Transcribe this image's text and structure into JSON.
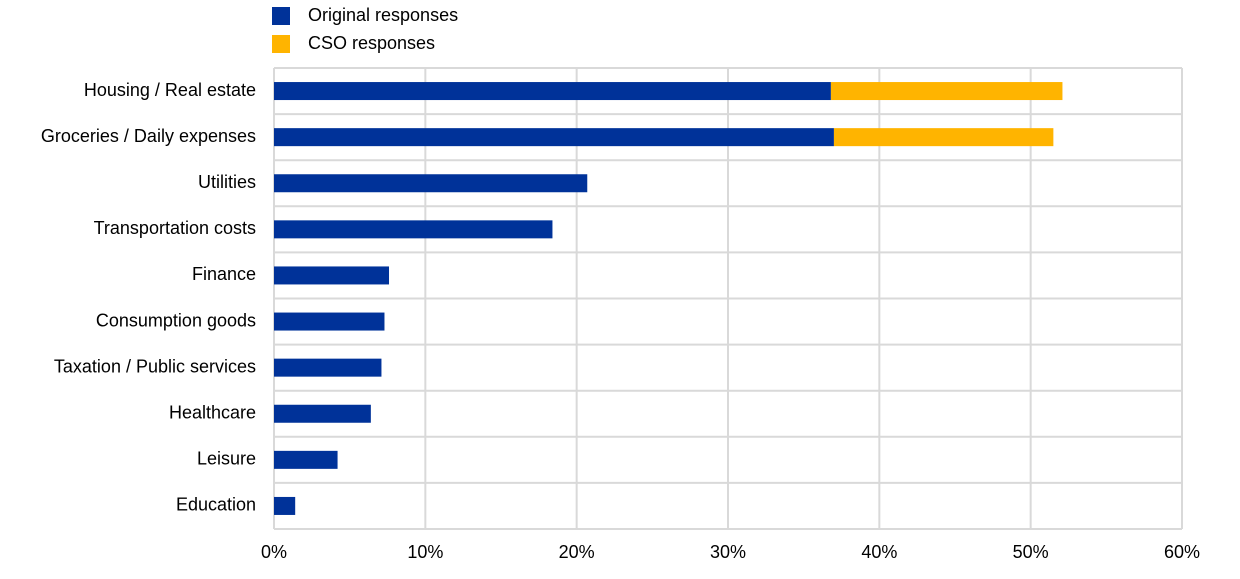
{
  "chart_data": {
    "type": "stacked-bar-horizontal",
    "categories": [
      "Housing / Real estate",
      "Groceries / Daily expenses",
      "Utilities",
      "Transportation costs",
      "Finance",
      "Consumption goods",
      "Taxation / Public services",
      "Healthcare",
      "Leisure",
      "Education"
    ],
    "series": [
      {
        "name": "Original responses",
        "color": "#003299",
        "values": [
          36.8,
          37.0,
          20.7,
          18.4,
          7.6,
          7.3,
          7.1,
          6.4,
          4.2,
          1.4
        ]
      },
      {
        "name": "CSO responses",
        "color": "#ffb400",
        "values": [
          15.3,
          14.5,
          null,
          null,
          null,
          null,
          null,
          null,
          null,
          null
        ]
      }
    ],
    "xlim": [
      0,
      60
    ],
    "xticks": [
      {
        "value": 0,
        "label": "0%"
      },
      {
        "value": 10,
        "label": "10%"
      },
      {
        "value": 20,
        "label": "20%"
      },
      {
        "value": 30,
        "label": "30%"
      },
      {
        "value": 40,
        "label": "40%"
      },
      {
        "value": 50,
        "label": "50%"
      },
      {
        "value": 60,
        "label": "60%"
      }
    ],
    "grid": true,
    "legend": "top-left"
  }
}
